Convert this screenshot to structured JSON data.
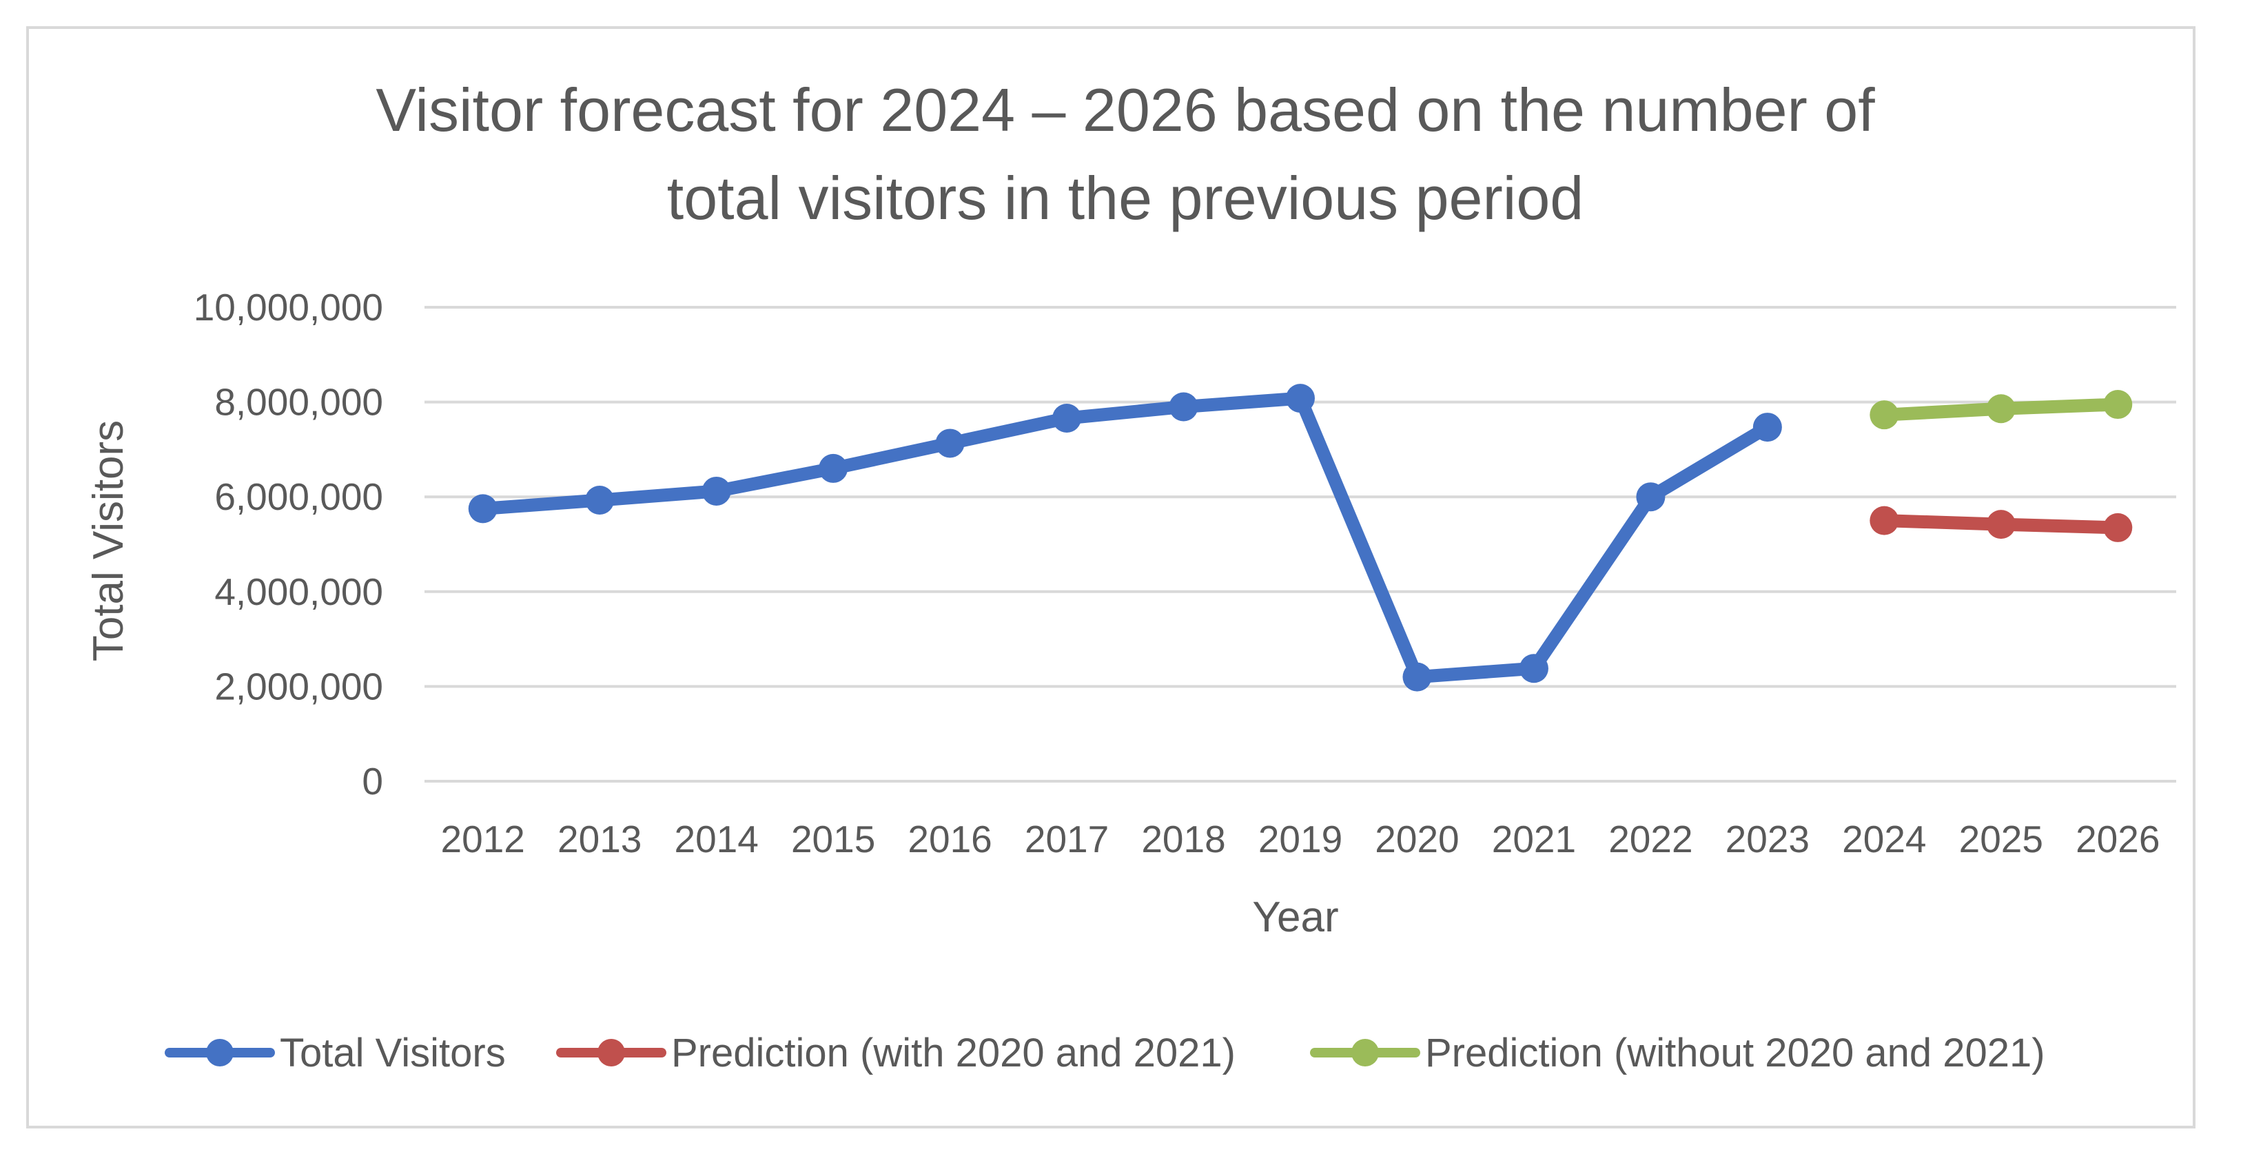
{
  "chart_data": {
    "type": "line",
    "title": [
      "Visitor forecast for 2024 – 2026 based on the number of",
      "total visitors in the previous period"
    ],
    "xlabel": "Year",
    "ylabel": "Total Visitors",
    "ylim": [
      0,
      10000000
    ],
    "y_ticks": [
      0,
      2000000,
      4000000,
      6000000,
      8000000,
      10000000
    ],
    "y_tick_labels": [
      "0",
      "2,000,000",
      "4,000,000",
      "6,000,000",
      "8,000,000",
      "10,000,000"
    ],
    "categories": [
      "2012",
      "2013",
      "2014",
      "2015",
      "2016",
      "2017",
      "2018",
      "2019",
      "2020",
      "2021",
      "2022",
      "2023",
      "2024",
      "2025",
      "2026"
    ],
    "grid": true,
    "legend_position": "bottom",
    "series": [
      {
        "name": "Total Visitors",
        "color": "#4472c4",
        "values": [
          5750000,
          5930000,
          6120000,
          6600000,
          7130000,
          7660000,
          7900000,
          8080000,
          2200000,
          2380000,
          6000000,
          7470000,
          null,
          null,
          null
        ]
      },
      {
        "name": "Prediction (with 2020 and 2021)",
        "color": "#c0504d",
        "values": [
          null,
          null,
          null,
          null,
          null,
          null,
          null,
          null,
          null,
          null,
          null,
          null,
          5500000,
          5420000,
          5350000
        ]
      },
      {
        "name": "Prediction (without 2020 and 2021)",
        "color": "#9bbb59",
        "values": [
          null,
          null,
          null,
          null,
          null,
          null,
          null,
          null,
          null,
          null,
          null,
          null,
          7730000,
          7860000,
          7950000
        ]
      }
    ]
  }
}
